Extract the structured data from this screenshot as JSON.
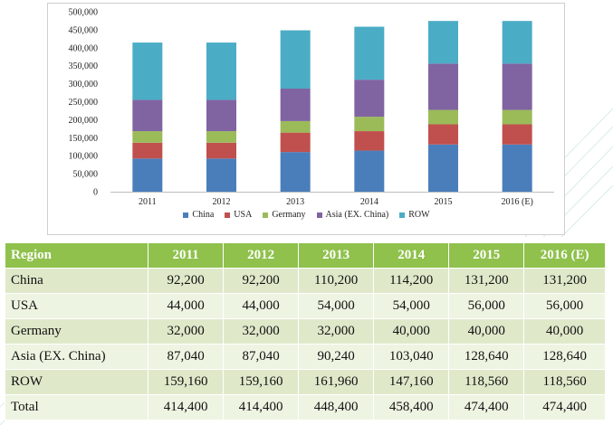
{
  "chart_data": {
    "type": "bar",
    "stacked": true,
    "categories": [
      "2011",
      "2012",
      "2013",
      "2014",
      "2015",
      "2016 (E)"
    ],
    "series": [
      {
        "name": "China",
        "color": "#4a7ebb",
        "values": [
          92200,
          92200,
          110200,
          114200,
          131200,
          131200
        ]
      },
      {
        "name": "USA",
        "color": "#c0504d",
        "values": [
          44000,
          44000,
          54000,
          54000,
          56000,
          56000
        ]
      },
      {
        "name": "Germany",
        "color": "#9bbb59",
        "values": [
          32000,
          32000,
          32000,
          40000,
          40000,
          40000
        ]
      },
      {
        "name": "Asia (EX. China)",
        "color": "#8064a2",
        "values": [
          87040,
          87040,
          90240,
          103040,
          128640,
          128640
        ]
      },
      {
        "name": "ROW",
        "color": "#4bacc6",
        "values": [
          159160,
          159160,
          161960,
          147160,
          118560,
          118560
        ]
      }
    ],
    "ylim": [
      0,
      500000
    ],
    "yticks": [
      "0",
      "50,000",
      "100,000",
      "150,000",
      "200,000",
      "250,000",
      "300,000",
      "350,000",
      "400,000",
      "450,000",
      "500,000"
    ],
    "grid": false,
    "legend_position": "bottom"
  },
  "table": {
    "headers": [
      "Region",
      "2011",
      "2012",
      "2013",
      "2014",
      "2015",
      "2016 (E)"
    ],
    "rows": [
      [
        "China",
        "92,200",
        "92,200",
        "110,200",
        "114,200",
        "131,200",
        "131,200"
      ],
      [
        "USA",
        "44,000",
        "44,000",
        "54,000",
        "54,000",
        "56,000",
        "56,000"
      ],
      [
        "Germany",
        "32,000",
        "32,000",
        "32,000",
        "40,000",
        "40,000",
        "40,000"
      ],
      [
        "Asia (EX. China)",
        "87,040",
        "87,040",
        "90,240",
        "103,040",
        "128,640",
        "128,640"
      ],
      [
        "ROW",
        "159,160",
        "159,160",
        "161,960",
        "147,160",
        "118,560",
        "118,560"
      ],
      [
        "Total",
        "414,400",
        "414,400",
        "448,400",
        "458,400",
        "474,400",
        "474,400"
      ]
    ]
  }
}
